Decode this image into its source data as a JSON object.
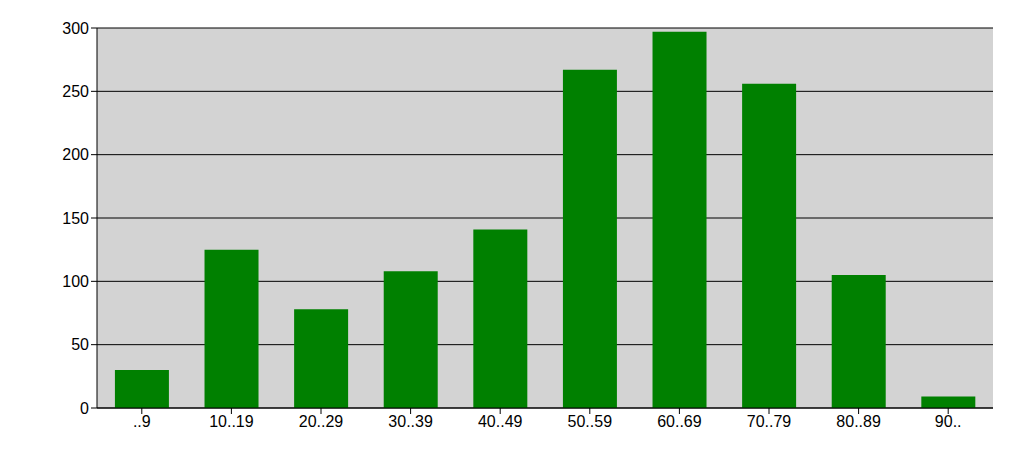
{
  "chart_data": {
    "type": "bar",
    "categories": [
      "..9",
      "10..19",
      "20..29",
      "30..39",
      "40..49",
      "50..59",
      "60..69",
      "70..79",
      "80..89",
      "90.."
    ],
    "values": [
      30,
      125,
      78,
      108,
      141,
      267,
      297,
      256,
      105,
      9
    ],
    "color": "#008000",
    "ylim": [
      0,
      300
    ],
    "yticks": [
      0,
      50,
      100,
      150,
      200,
      250,
      300
    ],
    "grid": true
  }
}
